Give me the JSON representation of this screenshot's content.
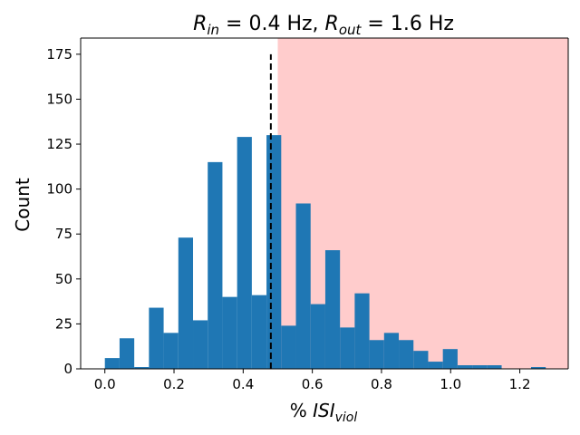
{
  "chart_data": {
    "type": "bar",
    "title": {
      "r_in_label": "R",
      "r_in_sub": "in",
      "r_in_value": " = 0.4 Hz, ",
      "r_out_label": "R",
      "r_out_sub": "out",
      "r_out_value": " = 1.6 Hz"
    },
    "xlabel": {
      "prefix": "% ",
      "main": "ISI",
      "sub": "viol"
    },
    "ylabel": "Count",
    "xlim": [
      -0.07,
      1.34
    ],
    "ylim": [
      0,
      184
    ],
    "xticks": [
      0.0,
      0.2,
      0.4,
      0.6,
      0.8,
      1.0,
      1.2
    ],
    "xtick_labels": [
      "0.0",
      "0.2",
      "0.4",
      "0.6",
      "0.8",
      "1.0",
      "1.2"
    ],
    "yticks": [
      0,
      25,
      50,
      75,
      100,
      125,
      150,
      175
    ],
    "ytick_labels": [
      "0",
      "25",
      "50",
      "75",
      "100",
      "125",
      "150",
      "175"
    ],
    "bin_width": 0.0425,
    "bins": [
      {
        "x": 0.0,
        "count": 6
      },
      {
        "x": 0.0425,
        "count": 17
      },
      {
        "x": 0.085,
        "count": 1
      },
      {
        "x": 0.1275,
        "count": 34
      },
      {
        "x": 0.17,
        "count": 20
      },
      {
        "x": 0.2125,
        "count": 73
      },
      {
        "x": 0.255,
        "count": 27
      },
      {
        "x": 0.2975,
        "count": 115
      },
      {
        "x": 0.34,
        "count": 40
      },
      {
        "x": 0.3825,
        "count": 129
      },
      {
        "x": 0.425,
        "count": 41
      },
      {
        "x": 0.4675,
        "count": 130
      },
      {
        "x": 0.51,
        "count": 24
      },
      {
        "x": 0.5525,
        "count": 92
      },
      {
        "x": 0.595,
        "count": 36
      },
      {
        "x": 0.6375,
        "count": 66
      },
      {
        "x": 0.68,
        "count": 23
      },
      {
        "x": 0.7225,
        "count": 42
      },
      {
        "x": 0.765,
        "count": 16
      },
      {
        "x": 0.8075,
        "count": 20
      },
      {
        "x": 0.85,
        "count": 16
      },
      {
        "x": 0.8925,
        "count": 10
      },
      {
        "x": 0.935,
        "count": 4
      },
      {
        "x": 0.9775,
        "count": 11
      },
      {
        "x": 1.02,
        "count": 2
      },
      {
        "x": 1.0625,
        "count": 2
      },
      {
        "x": 1.105,
        "count": 2
      },
      {
        "x": 1.1475,
        "count": 0
      },
      {
        "x": 1.19,
        "count": 0
      },
      {
        "x": 1.2325,
        "count": 1
      }
    ],
    "bar_color": "#1f77b4",
    "threshold_line": {
      "x": 0.48,
      "y_top": 175,
      "color": "#000000",
      "style": "dashed"
    },
    "shaded_region": {
      "x_start": 0.5,
      "x_end": 1.34,
      "color": "#ff0000",
      "opacity": 0.2
    },
    "grid": false,
    "legend": "none"
  }
}
